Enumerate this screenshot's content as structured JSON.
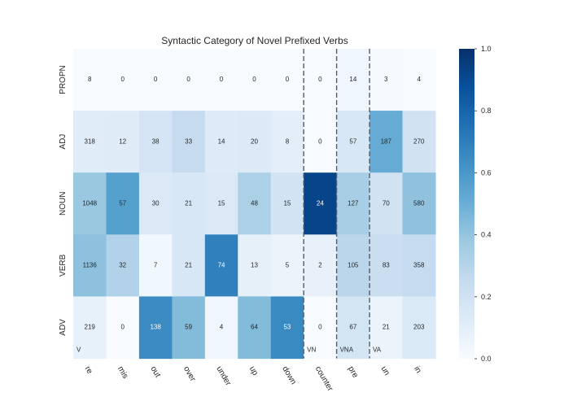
{
  "chart_data": {
    "type": "heatmap",
    "title": "Syntactic Category of Novel Prefixed Verbs",
    "columns": [
      "re",
      "mis",
      "out",
      "over",
      "under",
      "up",
      "down",
      "counter",
      "pre",
      "un",
      "in"
    ],
    "rows": [
      "PROPN",
      "ADJ",
      "NOUN",
      "VERB",
      "ADV"
    ],
    "values": [
      [
        8,
        0,
        0,
        0,
        0,
        0,
        0,
        0,
        14,
        3,
        4
      ],
      [
        318,
        12,
        38,
        33,
        14,
        20,
        8,
        0,
        57,
        187,
        270
      ],
      [
        1048,
        57,
        30,
        21,
        15,
        48,
        15,
        24,
        127,
        70,
        580
      ],
      [
        1136,
        32,
        7,
        21,
        74,
        13,
        5,
        2,
        105,
        83,
        358
      ],
      [
        219,
        0,
        138,
        59,
        4,
        64,
        53,
        0,
        67,
        21,
        203
      ]
    ],
    "color_scale": "column-normalized fraction (0 to 1), Blues colormap",
    "colorbar": {
      "min": 0.0,
      "max": 1.0,
      "ticks": [
        "0.0",
        "0.2",
        "0.4",
        "0.6",
        "0.8",
        "1.0"
      ]
    },
    "group_dividers_after_columns": [
      "down",
      "counter",
      "pre"
    ],
    "group_labels": [
      {
        "text": "V",
        "start_column": "re"
      },
      {
        "text": "VN",
        "start_column": "counter"
      },
      {
        "text": "VNA",
        "start_column": "pre"
      },
      {
        "text": "VA",
        "start_column": "un"
      }
    ],
    "colors": {
      "low": "#f7fbff",
      "high": "#08306b"
    }
  }
}
